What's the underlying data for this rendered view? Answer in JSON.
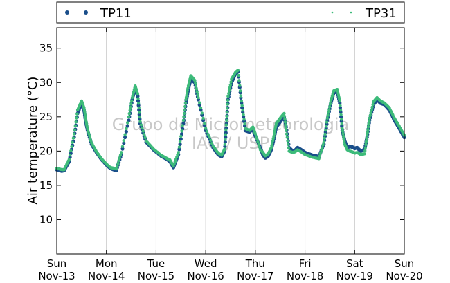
{
  "chart_data": {
    "type": "scatter",
    "ylabel": "Air temperature (°C)",
    "xlabel": "",
    "xlim": [
      0,
      7
    ],
    "ylim": [
      5,
      38
    ],
    "yticks": [
      10,
      15,
      20,
      25,
      30,
      35
    ],
    "ytick_labels": [
      "10",
      "15",
      "20",
      "25",
      "30",
      "35"
    ],
    "xticks": [
      0,
      1,
      2,
      3,
      4,
      5,
      6,
      7
    ],
    "xtick_labels": [
      {
        "day": "Sun",
        "date": "Nov-13"
      },
      {
        "day": "Mon",
        "date": "Nov-14"
      },
      {
        "day": "Tue",
        "date": "Nov-15"
      },
      {
        "day": "Wed",
        "date": "Nov-16"
      },
      {
        "day": "Thu",
        "date": "Nov-17"
      },
      {
        "day": "Fri",
        "date": "Nov-18"
      },
      {
        "day": "Sat",
        "date": "Nov-19"
      },
      {
        "day": "Sun",
        "date": "Nov-20"
      }
    ],
    "grid": "vertical",
    "legend_placement": "top",
    "watermark": [
      "Grupo de Micrometeorologia",
      "IAG / USP"
    ],
    "series": [
      {
        "name": "TP11",
        "color": "#1a4e8a",
        "marker": "circle",
        "x": [
          0,
          0.1,
          0.15,
          0.25,
          0.35,
          0.42,
          0.5,
          0.55,
          0.58,
          0.62,
          0.7,
          0.8,
          0.9,
          1.0,
          1.08,
          1.15,
          1.2,
          1.3,
          1.45,
          1.52,
          1.58,
          1.63,
          1.68,
          1.8,
          1.95,
          2.1,
          2.2,
          2.28,
          2.35,
          2.45,
          2.55,
          2.6,
          2.65,
          2.7,
          2.78,
          2.85,
          3.0,
          3.15,
          3.25,
          3.32,
          3.38,
          3.42,
          3.45,
          3.52,
          3.6,
          3.65,
          3.72,
          3.8,
          3.88,
          3.95,
          4.0,
          4.1,
          4.15,
          4.2,
          4.26,
          4.32,
          4.38,
          4.42,
          4.47,
          4.52,
          4.58,
          4.62,
          4.68,
          4.75,
          4.8,
          4.85,
          4.92,
          5.0,
          5.15,
          5.28,
          5.38,
          5.45,
          5.52,
          5.58,
          5.65,
          5.7,
          5.75,
          5.8,
          5.85,
          5.9,
          5.95,
          6.0,
          6.05,
          6.12,
          6.2,
          6.25,
          6.3,
          6.38,
          6.45,
          6.52,
          6.6,
          6.7,
          6.8,
          6.9,
          7.0
        ],
        "y": [
          17.3,
          17.1,
          17.2,
          18.5,
          22.0,
          25.5,
          27.0,
          26.0,
          24.5,
          23.0,
          21.0,
          19.8,
          18.8,
          18.0,
          17.5,
          17.3,
          17.2,
          19.5,
          24.5,
          27.5,
          29.3,
          28.0,
          24.0,
          21.3,
          20.2,
          19.3,
          18.9,
          18.5,
          17.6,
          19.5,
          24.0,
          27.0,
          29.0,
          30.5,
          30.0,
          27.5,
          23.0,
          20.5,
          19.5,
          19.2,
          20.0,
          24.0,
          27.5,
          30.0,
          31.3,
          31.6,
          27.0,
          23.0,
          22.8,
          23.2,
          22.2,
          20.5,
          19.5,
          19.0,
          19.3,
          20.2,
          22.0,
          23.5,
          24.0,
          24.5,
          25.0,
          23.5,
          20.5,
          20.0,
          20.1,
          20.5,
          20.2,
          19.8,
          19.4,
          19.2,
          21.0,
          24.5,
          27.0,
          28.5,
          28.7,
          27.0,
          23.0,
          21.5,
          20.5,
          20.7,
          20.6,
          20.4,
          20.5,
          20.0,
          20.2,
          22.0,
          24.5,
          26.8,
          27.5,
          27.0,
          26.8,
          26.0,
          24.5,
          23.3,
          22.0
        ]
      },
      {
        "name": "TP31",
        "color": "#3dbb7a",
        "marker": "point",
        "x": [
          0,
          0.1,
          0.15,
          0.25,
          0.35,
          0.42,
          0.5,
          0.55,
          0.58,
          0.62,
          0.7,
          0.8,
          0.9,
          1.0,
          1.08,
          1.15,
          1.2,
          1.3,
          1.45,
          1.52,
          1.58,
          1.63,
          1.68,
          1.8,
          1.95,
          2.1,
          2.2,
          2.28,
          2.35,
          2.45,
          2.55,
          2.6,
          2.65,
          2.7,
          2.78,
          2.85,
          3.0,
          3.15,
          3.25,
          3.32,
          3.38,
          3.42,
          3.45,
          3.52,
          3.6,
          3.65,
          3.72,
          3.8,
          3.88,
          3.95,
          4.0,
          4.1,
          4.15,
          4.2,
          4.26,
          4.32,
          4.38,
          4.42,
          4.47,
          4.52,
          4.58,
          4.62,
          4.68,
          4.75,
          4.8,
          4.85,
          4.92,
          5.0,
          5.15,
          5.28,
          5.38,
          5.45,
          5.52,
          5.58,
          5.65,
          5.7,
          5.75,
          5.8,
          5.85,
          5.9,
          5.95,
          6.0,
          6.05,
          6.12,
          6.2,
          6.25,
          6.3,
          6.38,
          6.45,
          6.52,
          6.6,
          6.7,
          6.8,
          6.9,
          7.0
        ],
        "y": [
          17.5,
          17.3,
          17.3,
          18.8,
          22.5,
          26.0,
          27.3,
          26.3,
          24.8,
          23.2,
          21.2,
          19.9,
          18.9,
          18.1,
          17.6,
          17.5,
          17.4,
          19.8,
          25.0,
          27.8,
          29.5,
          28.3,
          24.3,
          21.5,
          20.3,
          19.4,
          19.0,
          18.7,
          17.8,
          19.8,
          24.5,
          27.5,
          29.5,
          31.0,
          30.3,
          27.8,
          23.3,
          20.7,
          19.7,
          19.4,
          20.3,
          24.5,
          28.0,
          30.5,
          31.5,
          31.8,
          27.3,
          23.3,
          23.0,
          23.5,
          22.5,
          20.2,
          19.8,
          19.3,
          19.6,
          20.5,
          22.5,
          24.0,
          24.5,
          25.0,
          25.5,
          23.0,
          20.0,
          19.8,
          19.9,
          20.2,
          19.9,
          19.5,
          19.1,
          18.9,
          21.3,
          24.8,
          27.3,
          28.8,
          29.0,
          27.3,
          23.3,
          21.0,
          20.2,
          20.0,
          19.9,
          19.7,
          19.8,
          19.5,
          19.6,
          22.3,
          24.8,
          27.2,
          27.8,
          27.3,
          27.0,
          26.3,
          24.8,
          23.6,
          22.3
        ]
      }
    ]
  }
}
